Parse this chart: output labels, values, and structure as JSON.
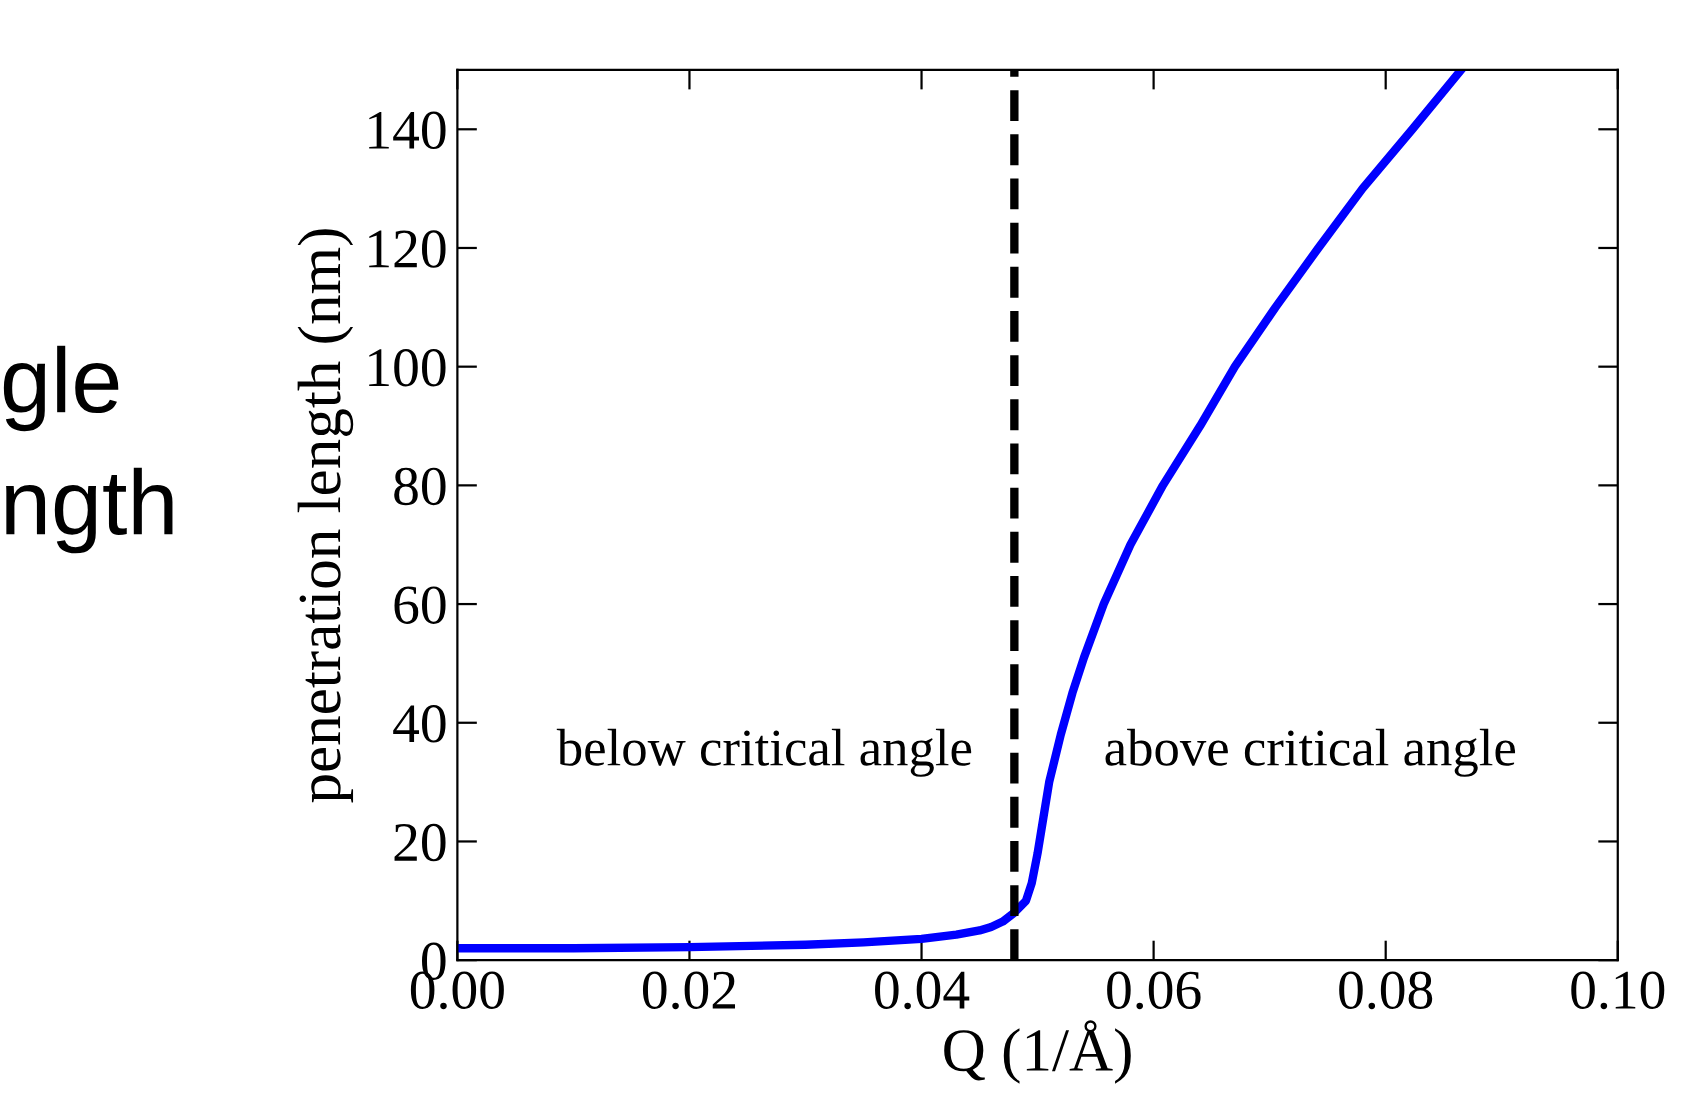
{
  "chart_data": {
    "type": "line",
    "xlabel": "Q (1/Å)",
    "ylabel": "penetration length (nm)",
    "series": [
      {
        "color": "#0000ff",
        "x": [
          0.0,
          0.01,
          0.02,
          0.03,
          0.035,
          0.04,
          0.043,
          0.045,
          0.046,
          0.047,
          0.048,
          0.049,
          0.0495,
          0.05,
          0.0505,
          0.051,
          0.052,
          0.053,
          0.054,
          0.0557,
          0.058,
          0.0608,
          0.064,
          0.067,
          0.0705,
          0.0742,
          0.078,
          0.0823,
          0.0865
        ],
        "values": [
          2,
          2,
          2.2,
          2.6,
          3,
          3.6,
          4.3,
          5,
          5.6,
          6.5,
          8,
          10,
          13,
          18,
          24,
          30,
          38,
          45,
          51,
          60,
          70,
          80,
          90,
          100,
          110,
          120,
          130,
          140,
          150
        ]
      }
    ],
    "line_style": "solid",
    "marker": "none",
    "xlim": [
      0.0,
      0.1
    ],
    "xticks": [
      {
        "value": 0.0,
        "label": "0.00"
      },
      0.02,
      0.04,
      0.06,
      0.08,
      {
        "value": 0.1,
        "label": "0.10"
      }
    ],
    "ylim": [
      0,
      150
    ],
    "yticks": [
      0,
      20,
      40,
      60,
      80,
      100,
      120,
      140
    ],
    "ref_lines": [
      {
        "axis": "x",
        "value": 0.048,
        "color": "#000000",
        "line_style": "dashed"
      }
    ],
    "annotations": [
      "below critical angle",
      "above critical angle",
      "gle",
      "ngth"
    ],
    "grid": false,
    "legend": false
  }
}
